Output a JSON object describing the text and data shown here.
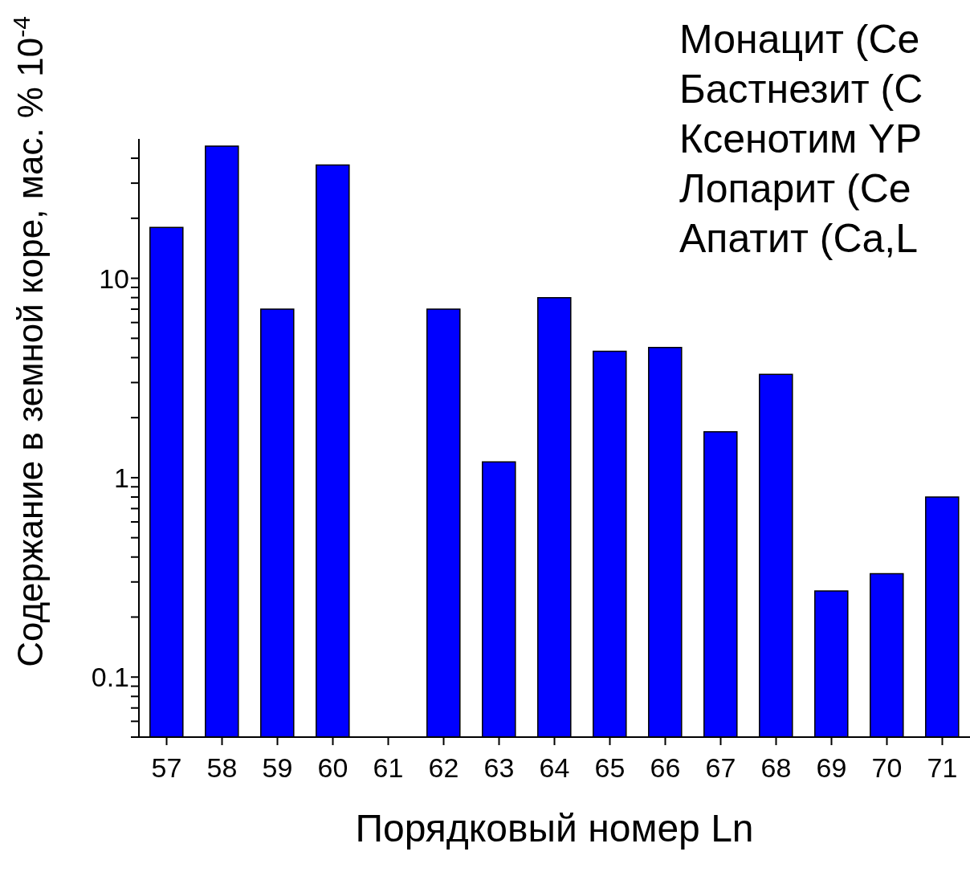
{
  "chart_data": {
    "type": "bar",
    "xlabel": "Порядковый номер Ln",
    "ylabel": "Содержание в земной коре, мас. % 10$^{-4}$",
    "categories": [
      "57",
      "58",
      "59",
      "60",
      "61",
      "62",
      "63",
      "64",
      "65",
      "66",
      "67",
      "68",
      "69",
      "70",
      "71"
    ],
    "values": [
      18,
      46,
      7.0,
      37,
      null,
      7.0,
      1.2,
      8.0,
      4.3,
      4.5,
      1.7,
      3.3,
      0.27,
      0.33,
      0.8
    ],
    "color": "#0000ff",
    "log": "y",
    "ylim": [
      0.05,
      50
    ],
    "yticks": [
      {
        "value": 0.05,
        "label": null
      },
      {
        "value": 0.06,
        "label": null
      },
      {
        "value": 0.07,
        "label": null
      },
      {
        "value": 0.08,
        "label": null
      },
      {
        "value": 0.09,
        "label": null
      },
      0.1,
      {
        "value": 0.2,
        "label": null
      },
      {
        "value": 0.3,
        "label": null
      },
      {
        "value": 0.4,
        "label": null
      },
      {
        "value": 0.5,
        "label": null
      },
      {
        "value": 0.6,
        "label": null
      },
      {
        "value": 0.7,
        "label": null
      },
      {
        "value": 0.8,
        "label": null
      },
      {
        "value": 0.9,
        "label": null
      },
      1,
      {
        "value": 2,
        "label": null
      },
      {
        "value": 3,
        "label": null
      },
      {
        "value": 4,
        "label": null
      },
      {
        "value": 5,
        "label": null
      },
      {
        "value": 6,
        "label": null
      },
      {
        "value": 7,
        "label": null
      },
      {
        "value": 8,
        "label": null
      },
      {
        "value": 9,
        "label": null
      },
      10,
      {
        "value": 20,
        "label": null
      },
      {
        "value": 30,
        "label": null
      },
      {
        "value": 40,
        "label": null
      }
    ],
    "annotations": [
      "Монацит (Ce",
      "Бастнезит (C",
      "Ксенотим YP",
      "Лопарит (Ce",
      "Апатит (Ca,L"
    ],
    "grid": false,
    "legend": false
  }
}
